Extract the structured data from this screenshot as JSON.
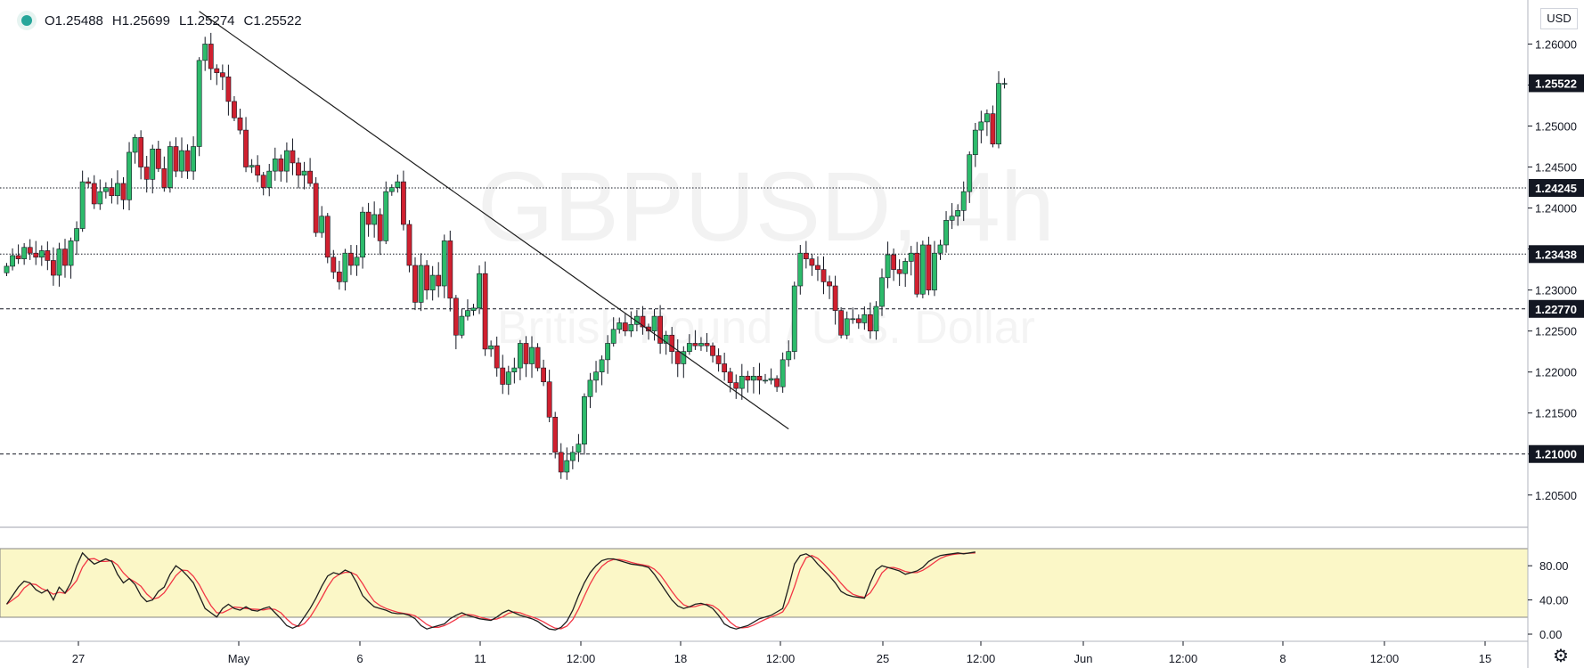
{
  "ohlc": {
    "open": "O1.25488",
    "high": "H1.25699",
    "low": "L1.25274",
    "close": "C1.25522"
  },
  "currency_button": "USD",
  "watermark": {
    "symbol": "GBPUSD, 4h",
    "subtitle": "British Pound / U.S. Dollar"
  },
  "colors": {
    "up": "#26a69a",
    "up_body": "#2dbb6b",
    "down": "#d0202f",
    "axis_text": "#131722",
    "band": "#fbf7c7",
    "stoch_k": "#1e1e1e",
    "stoch_d": "#f23645",
    "accent": "#2962ff"
  },
  "icons": {
    "settings": "gear-icon",
    "indicator": "status-dot-icon"
  },
  "chart_data": {
    "type": "candlestick",
    "price_axis": {
      "ticks": [
        "1.26000",
        "1.25500",
        "1.25000",
        "1.24500",
        "1.24000",
        "1.23500",
        "1.23000",
        "1.22500",
        "1.22000",
        "1.21500",
        "1.21000",
        "1.20500"
      ],
      "ylim": [
        1.2015,
        1.2645
      ]
    },
    "price_labels": [
      {
        "value": 1.25522,
        "text": "1.25522"
      },
      {
        "value": 1.24245,
        "text": "1.24245"
      },
      {
        "value": 1.23438,
        "text": "1.23438"
      },
      {
        "value": 1.2277,
        "text": "1.22770"
      },
      {
        "value": 1.21,
        "text": "1.21000"
      }
    ],
    "horizontal_levels": [
      {
        "value": 1.24245,
        "style": "dotted"
      },
      {
        "value": 1.23438,
        "style": "dotted"
      },
      {
        "value": 1.2277,
        "style": "dashed"
      },
      {
        "value": 1.21,
        "style": "dashed"
      }
    ],
    "trendline": {
      "from": {
        "bar": 33,
        "price": 1.26398
      },
      "to": {
        "bar": 134,
        "price": 1.21305
      }
    },
    "time_axis": [
      "27",
      "May",
      "6",
      "11",
      "12:00",
      "18",
      "12:00",
      "25",
      "12:00",
      "Jun",
      "12:00",
      "8",
      "12:00",
      "15"
    ],
    "closes": [
      1.2329,
      1.2342,
      1.2338,
      1.2352,
      1.2345,
      1.234,
      1.2348,
      1.2336,
      1.2318,
      1.235,
      1.233,
      1.236,
      1.2375,
      1.2432,
      1.243,
      1.2405,
      1.242,
      1.2425,
      1.2415,
      1.243,
      1.241,
      1.2468,
      1.2486,
      1.245,
      1.2435,
      1.2472,
      1.2448,
      1.2425,
      1.2475,
      1.2445,
      1.247,
      1.2445,
      1.2475,
      1.258,
      1.26,
      1.257,
      1.2565,
      1.256,
      1.253,
      1.251,
      1.2495,
      1.245,
      1.2452,
      1.244,
      1.2425,
      1.2445,
      1.246,
      1.2445,
      1.247,
      1.2455,
      1.244,
      1.2445,
      1.243,
      1.237,
      1.239,
      1.234,
      1.2322,
      1.231,
      1.2345,
      1.233,
      1.234,
      1.2395,
      1.238,
      1.2392,
      1.236,
      1.242,
      1.2425,
      1.2432,
      1.238,
      1.233,
      1.2285,
      1.233,
      1.23,
      1.2318,
      1.2305,
      1.236,
      1.229,
      1.2245,
      1.2268,
      1.2275,
      1.2278,
      1.232,
      1.2228,
      1.2232,
      1.2205,
      1.2185,
      1.22,
      1.2205,
      1.2235,
      1.221,
      1.223,
      1.2205,
      1.2188,
      1.2145,
      1.2102,
      1.2078,
      1.2092,
      1.2102,
      1.2112,
      1.217,
      1.219,
      1.22,
      1.2215,
      1.2235,
      1.2252,
      1.226,
      1.225,
      1.2258,
      1.2268,
      1.2255,
      1.225,
      1.2268,
      1.2235,
      1.2245,
      1.2225,
      1.221,
      1.2225,
      1.2235,
      1.2232,
      1.2235,
      1.2232,
      1.222,
      1.221,
      1.22,
      1.2187,
      1.218,
      1.2195,
      1.219,
      1.2195,
      1.219,
      1.219,
      1.2192,
      1.2182,
      1.2215,
      1.2225,
      1.2305,
      1.2345,
      1.2338,
      1.233,
      1.2325,
      1.231,
      1.2305,
      1.2275,
      1.2245,
      1.2265,
      1.2265,
      1.226,
      1.227,
      1.225,
      1.228,
      1.2315,
      1.2343,
      1.2325,
      1.232,
      1.2335,
      1.2345,
      1.2295,
      1.2355,
      1.23,
      1.2345,
      1.2355,
      1.2385,
      1.239,
      1.2397,
      1.242,
      1.2465,
      1.2495,
      1.2505,
      1.2515,
      1.2478,
      1.2552,
      1.2552
    ],
    "stochastic": {
      "band": [
        20,
        80
      ],
      "axis_ticks": [
        "80.00",
        "40.00",
        "0.00"
      ],
      "k": [
        35,
        45,
        55,
        62,
        60,
        52,
        48,
        52,
        40,
        55,
        48,
        60,
        80,
        95,
        88,
        82,
        85,
        88,
        85,
        70,
        60,
        65,
        58,
        45,
        38,
        40,
        50,
        55,
        70,
        80,
        75,
        68,
        60,
        45,
        30,
        25,
        20,
        30,
        35,
        30,
        28,
        32,
        28,
        27,
        30,
        32,
        25,
        18,
        10,
        7,
        10,
        20,
        30,
        42,
        56,
        68,
        72,
        70,
        75,
        72,
        60,
        45,
        38,
        32,
        30,
        28,
        25,
        24,
        24,
        22,
        18,
        10,
        6,
        8,
        10,
        12,
        18,
        22,
        25,
        22,
        20,
        18,
        17,
        16,
        20,
        25,
        28,
        25,
        22,
        20,
        18,
        15,
        10,
        6,
        5,
        8,
        15,
        28,
        45,
        60,
        72,
        80,
        86,
        88,
        88,
        86,
        84,
        82,
        81,
        80,
        78,
        70,
        60,
        50,
        40,
        33,
        30,
        32,
        35,
        36,
        34,
        30,
        22,
        12,
        8,
        6,
        8,
        10,
        14,
        18,
        20,
        22,
        26,
        30,
        55,
        82,
        92,
        94,
        90,
        82,
        75,
        68,
        60,
        50,
        46,
        44,
        43,
        42,
        60,
        75,
        80,
        78,
        76,
        74,
        70,
        72,
        74,
        78,
        85,
        89,
        92,
        93,
        94,
        95,
        94,
        95,
        96
      ]
    }
  }
}
